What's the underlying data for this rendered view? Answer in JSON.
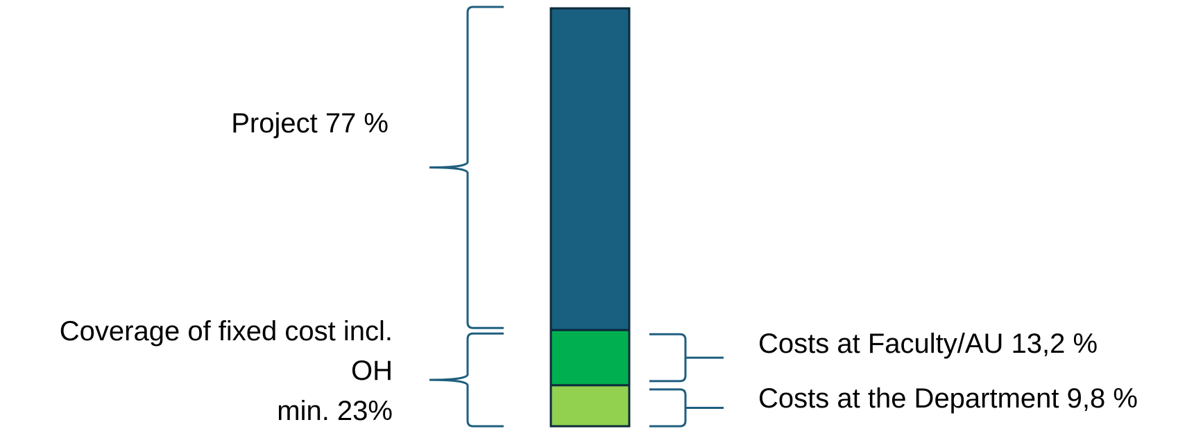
{
  "chart_data": {
    "type": "bar",
    "orientation": "vertical-stacked",
    "categories": [
      ""
    ],
    "series": [
      {
        "name": "Project",
        "values": [
          77
        ],
        "color": "#185F80"
      },
      {
        "name": "Costs at Faculty/AU",
        "values": [
          13.2
        ],
        "color": "#00B050"
      },
      {
        "name": "Costs at the Department",
        "values": [
          9.8
        ],
        "color": "#92D050"
      }
    ],
    "labels": {
      "project": "Project 77 %",
      "overhead_line1": "Coverage of fixed cost incl.",
      "overhead_line2": "OH",
      "overhead_line3": "min. 23%",
      "faculty": "Costs at Faculty/AU 13,2 %",
      "department": "Costs at the Department 9,8 %"
    },
    "bracket_color": "#1F5E7E",
    "border_color": "#0D2A3A",
    "title": "",
    "xlabel": "",
    "ylabel": ""
  }
}
